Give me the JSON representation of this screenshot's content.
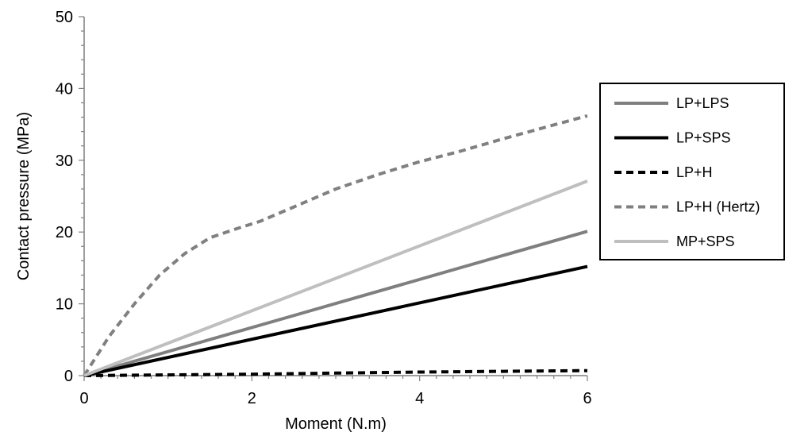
{
  "chart_data": {
    "type": "line",
    "title": "",
    "xlabel": "Moment (N.m)",
    "ylabel": "Contact pressure (MPa)",
    "xlim": [
      0,
      6
    ],
    "ylim": [
      0,
      50
    ],
    "xticks": [
      0,
      2,
      4,
      6
    ],
    "yticks": [
      0,
      10,
      20,
      30,
      40,
      50
    ],
    "grid": false,
    "legend_position": "right",
    "series": [
      {
        "name": "LP+LPS",
        "color": "#7f7f7f",
        "dash": "solid",
        "x": [
          0,
          6
        ],
        "y": [
          0,
          20.1
        ]
      },
      {
        "name": "LP+SPS",
        "color": "#000000",
        "dash": "solid",
        "x": [
          0,
          6
        ],
        "y": [
          0,
          15.2
        ]
      },
      {
        "name": "LP+H",
        "color": "#000000",
        "dash": "dashed",
        "x": [
          0,
          1,
          2,
          3,
          4,
          5,
          6
        ],
        "y": [
          0,
          0.1,
          0.2,
          0.35,
          0.5,
          0.6,
          0.7
        ]
      },
      {
        "name": "LP+H (Hertz)",
        "color": "#808080",
        "dash": "dashed",
        "x": [
          0,
          0.3,
          0.6,
          0.9,
          1.2,
          1.5,
          1.8,
          2.1,
          2.5,
          3,
          3.5,
          4,
          4.5,
          5,
          5.5,
          6
        ],
        "y": [
          0,
          5.5,
          10,
          14,
          17,
          19.2,
          20.4,
          21.5,
          23.5,
          26,
          28,
          29.8,
          31.3,
          33,
          34.6,
          36.2
        ]
      },
      {
        "name": "MP+SPS",
        "color": "#bfbfbf",
        "dash": "solid",
        "x": [
          0,
          6
        ],
        "y": [
          0,
          27.1
        ]
      }
    ]
  }
}
